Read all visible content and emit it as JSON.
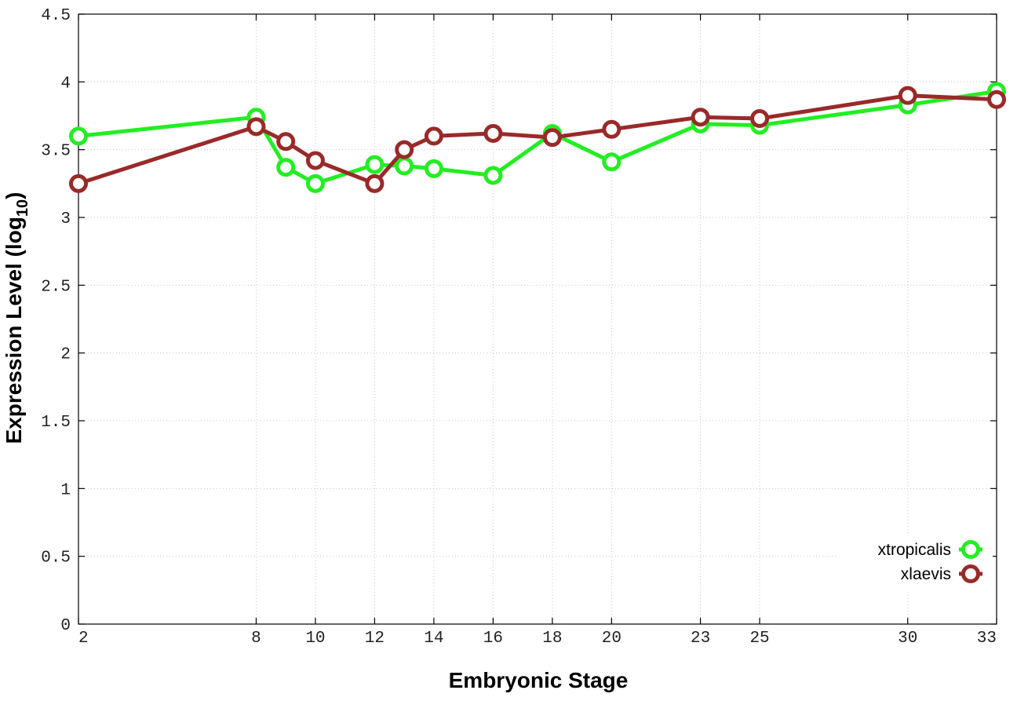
{
  "chart_data": {
    "type": "line",
    "title": "",
    "xlabel": "Embryonic Stage",
    "ylabel_main": "Expression Level (log",
    "ylabel_sub": "10",
    "ylabel_close": ")",
    "xlim": [
      2,
      33
    ],
    "ylim": [
      0,
      4.5
    ],
    "xticks": [
      2,
      8,
      10,
      12,
      14,
      16,
      18,
      20,
      23,
      25,
      30,
      33
    ],
    "xtick_labels": [
      "2",
      "8",
      "10",
      "12",
      "14",
      "16",
      "18",
      "20",
      "23",
      "25",
      "30",
      "33"
    ],
    "yticks": [
      0,
      0.5,
      1,
      1.5,
      2,
      2.5,
      3,
      3.5,
      4,
      4.5
    ],
    "ytick_labels": [
      "0",
      "0.5",
      "1",
      "1.5",
      "2",
      "2.5",
      "3",
      "3.5",
      "4",
      "4.5"
    ],
    "grid": true,
    "legend_position": "bottom-right",
    "series": [
      {
        "name": "xtropicalis",
        "color": "#22ee22",
        "x": [
          2,
          8,
          9,
          10,
          12,
          13,
          14,
          16,
          18,
          20,
          23,
          25,
          30,
          33
        ],
        "y": [
          3.6,
          3.74,
          3.37,
          3.25,
          3.39,
          3.38,
          3.36,
          3.31,
          3.62,
          3.41,
          3.69,
          3.68,
          3.83,
          3.93
        ]
      },
      {
        "name": "xlaevis",
        "color": "#992a2a",
        "x": [
          2,
          8,
          9,
          10,
          12,
          13,
          14,
          16,
          18,
          20,
          23,
          25,
          30,
          33
        ],
        "y": [
          3.25,
          3.67,
          3.56,
          3.42,
          3.25,
          3.5,
          3.6,
          3.62,
          3.59,
          3.65,
          3.74,
          3.73,
          3.9,
          3.87
        ]
      }
    ]
  }
}
